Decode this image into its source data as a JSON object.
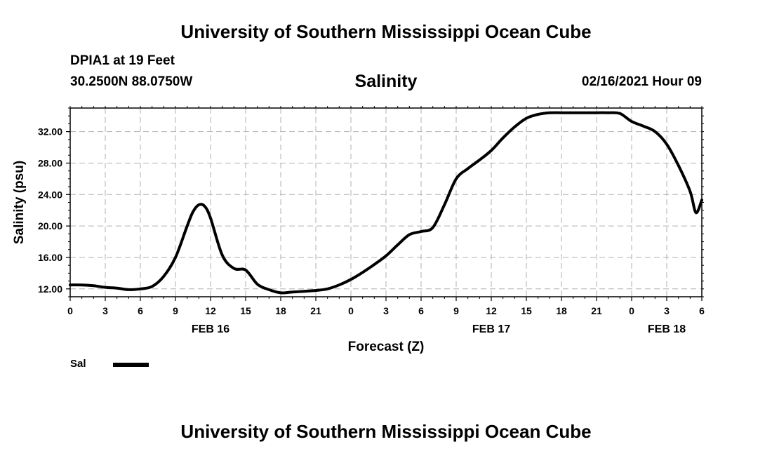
{
  "header": {
    "institution": "University of Southern Mississippi Ocean Cube",
    "station": "DPIA1 at 19 Feet",
    "coordinates": "30.2500N 88.0750W",
    "run_time": "02/16/2021 Hour 09"
  },
  "footer": {
    "institution": "University of Southern Mississippi Ocean Cube"
  },
  "legend": {
    "label": "Sal",
    "color": "#000000"
  },
  "chart_data": {
    "type": "line",
    "title": "Salinity",
    "xlabel": "Forecast (Z)",
    "ylabel": "Salinity (psu)",
    "xlim": [
      0,
      54
    ],
    "ylim": [
      11,
      35
    ],
    "grid": true,
    "y_ticks": [
      "12.00",
      "16.00",
      "20.00",
      "24.00",
      "28.00",
      "32.00"
    ],
    "x_ticks": [
      "0",
      "3",
      "6",
      "9",
      "12",
      "15",
      "18",
      "21",
      "0",
      "3",
      "6",
      "9",
      "12",
      "15",
      "18",
      "21",
      "0",
      "3",
      "6"
    ],
    "day_labels": [
      {
        "label": "FEB 16",
        "at_hour": 12
      },
      {
        "label": "FEB 17",
        "at_hour": 36
      },
      {
        "label": "FEB 18",
        "at_hour": 51
      }
    ],
    "series": [
      {
        "name": "Sal",
        "color": "#000000",
        "x": [
          0,
          1,
          2,
          3,
          4,
          5,
          6,
          7,
          8,
          9,
          10,
          10.5,
          11,
          11.5,
          12,
          13,
          14,
          15,
          16,
          17,
          18,
          19,
          20,
          21,
          22,
          23,
          24,
          25,
          26,
          27,
          28,
          29,
          30,
          31,
          32,
          33,
          34,
          35,
          36,
          37,
          38,
          39,
          40,
          41,
          42,
          43,
          44,
          45,
          46,
          47,
          48,
          49,
          50,
          51,
          52,
          53,
          53.5,
          54
        ],
        "y": [
          12.5,
          12.5,
          12.4,
          12.2,
          12.1,
          11.9,
          12.0,
          12.3,
          13.6,
          16.0,
          20.0,
          21.8,
          22.7,
          22.5,
          21.0,
          16.3,
          14.6,
          14.4,
          12.6,
          11.9,
          11.5,
          11.6,
          11.7,
          11.8,
          12.0,
          12.5,
          13.2,
          14.1,
          15.1,
          16.2,
          17.6,
          18.9,
          19.3,
          19.8,
          22.7,
          26.0,
          27.3,
          28.4,
          29.6,
          31.2,
          32.6,
          33.7,
          34.2,
          34.4,
          34.4,
          34.4,
          34.4,
          34.4,
          34.4,
          34.3,
          33.3,
          32.7,
          32.0,
          30.4,
          27.7,
          24.4,
          21.7,
          23.3
        ]
      }
    ]
  }
}
